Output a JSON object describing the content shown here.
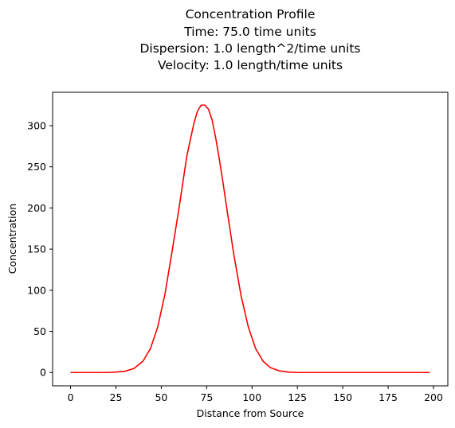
{
  "chart_data": {
    "type": "line",
    "title_lines": [
      "Concentration Profile",
      "Time: 75.0 time units",
      "Dispersion: 1.0 length^2/time units",
      "Velocity: 1.0 length/time units"
    ],
    "xlabel": "Distance from Source",
    "ylabel": "Concentration",
    "xlim": [
      -9.9,
      207.9
    ],
    "ylim": [
      -16.2,
      340.6
    ],
    "xticks": [
      0,
      25,
      50,
      75,
      100,
      125,
      150,
      175,
      200
    ],
    "yticks": [
      0,
      50,
      100,
      150,
      200,
      250,
      300
    ],
    "grid": false,
    "legend": "none",
    "series": [
      {
        "color": "#ff0000",
        "x": [
          0,
          5,
          10,
          15,
          20,
          25,
          30,
          35,
          40,
          44,
          48,
          52,
          56,
          60,
          64,
          66,
          68,
          70,
          72,
          74,
          76,
          78,
          80,
          82,
          84,
          86,
          90,
          94,
          98,
          102,
          106,
          110,
          115,
          120,
          125,
          130,
          140,
          150,
          160,
          170,
          180,
          190,
          198
        ],
        "y": [
          0,
          0,
          0,
          0,
          0,
          0.5,
          1.5,
          5,
          14,
          29,
          55,
          95,
          148,
          203,
          262,
          283,
          303,
          318,
          325,
          325,
          320,
          307,
          285,
          259,
          231,
          201,
          143,
          93,
          55,
          29,
          14,
          6,
          2,
          0.5,
          0,
          0,
          0,
          0,
          0,
          0,
          0,
          0,
          0
        ]
      }
    ]
  }
}
